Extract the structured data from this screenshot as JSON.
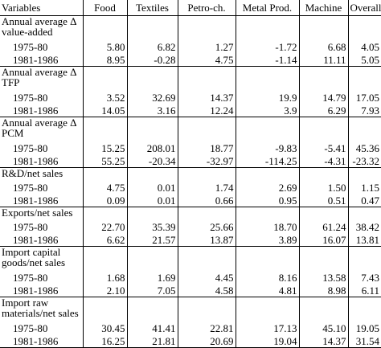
{
  "headers": [
    "Variables",
    "Food",
    "Textiles",
    "Petro-ch.",
    "Metal Prod.",
    "Machine",
    "Overall"
  ],
  "groups": [
    {
      "label": [
        "Annual average Δ",
        "value-added"
      ],
      "rows": [
        {
          "period": "1975-80",
          "values": [
            "5.80",
            "6.82",
            "1.27",
            "-1.72",
            "6.68",
            "4.05"
          ]
        },
        {
          "period": "1981-1986",
          "values": [
            "8.95",
            "-0.28",
            "4.75",
            "-1.14",
            "11.11",
            "5.05"
          ]
        }
      ]
    },
    {
      "label": [
        "Annual average Δ",
        "TFP"
      ],
      "rows": [
        {
          "period": "1975-80",
          "values": [
            "3.52",
            "32.69",
            "14.37",
            "19.9",
            "14.79",
            "17.05"
          ]
        },
        {
          "period": "1981-1986",
          "values": [
            "14.05",
            "3.16",
            "12.24",
            "3.9",
            "6.29",
            "7.93"
          ]
        }
      ]
    },
    {
      "label": [
        "Annual average Δ",
        "PCM"
      ],
      "rows": [
        {
          "period": "1975-80",
          "values": [
            "15.25",
            "208.01",
            "18.77",
            "-9.83",
            "-5.41",
            "45.36"
          ]
        },
        {
          "period": "1981-1986",
          "values": [
            "55.25",
            "-20.34",
            "-32.97",
            "-114.25",
            "-4.31",
            "-23.32"
          ]
        }
      ]
    },
    {
      "label": [
        "R&D/net sales"
      ],
      "rows": [
        {
          "period": "1975-80",
          "values": [
            "4.75",
            "0.01",
            "1.74",
            "2.69",
            "1.50",
            "1.15"
          ]
        },
        {
          "period": "1981-1986",
          "values": [
            "0.09",
            "0.01",
            "0.66",
            "0.95",
            "0.51",
            "0.47"
          ]
        }
      ]
    },
    {
      "label": [
        "Exports/net sales"
      ],
      "rows": [
        {
          "period": "1975-80",
          "values": [
            "22.70",
            "35.39",
            "25.66",
            "18.70",
            "61.24",
            "38.42"
          ]
        },
        {
          "period": "1981-1986",
          "values": [
            "6.62",
            "21.57",
            "13.87",
            "3.89",
            "16.07",
            "13.81"
          ]
        }
      ]
    },
    {
      "label": [
        "Import capital",
        "goods/net sales"
      ],
      "rows": [
        {
          "period": "1975-80",
          "values": [
            "1.68",
            "1.69",
            "4.45",
            "8.16",
            "13.58",
            "7.43"
          ]
        },
        {
          "period": "1981-1986",
          "values": [
            "2.10",
            "7.05",
            "4.58",
            "4.81",
            "8.98",
            "6.11"
          ]
        }
      ]
    },
    {
      "label": [
        "Import raw",
        "materials/net sales"
      ],
      "rows": [
        {
          "period": "1975-80",
          "values": [
            "30.45",
            "41.41",
            "22.81",
            "17.13",
            "45.10",
            "19.05"
          ]
        },
        {
          "period": "1981-1986",
          "values": [
            "16.25",
            "21.81",
            "20.69",
            "19.04",
            "14.37",
            "31.54"
          ]
        }
      ]
    }
  ]
}
